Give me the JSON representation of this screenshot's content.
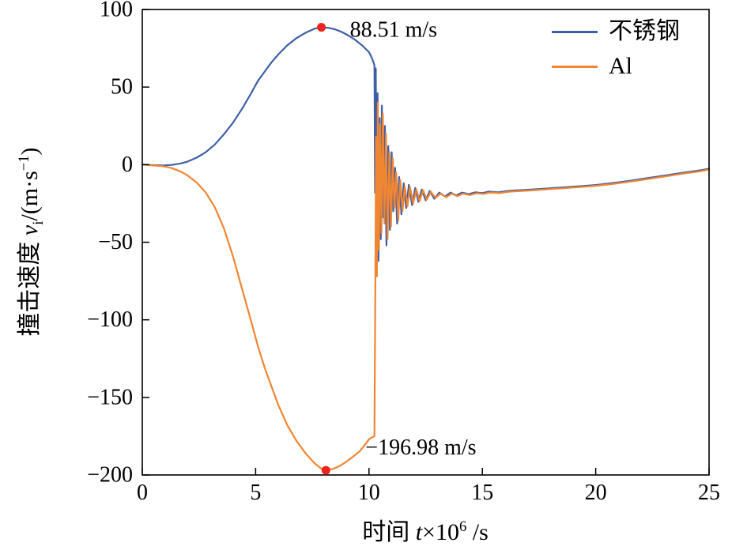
{
  "chart_data": {
    "type": "line",
    "title": "",
    "xlabel": {
      "prefix": "时间 ",
      "var": "t",
      "mult": "×10",
      "sup": "6",
      "suffix": " /s"
    },
    "ylabel": {
      "prefix": "撞击速度 ",
      "var": "v",
      "sub": "i",
      "mid": "/(m·s",
      "sup": "−1",
      "suffix": ")"
    },
    "xlim": [
      0,
      25
    ],
    "ylim": [
      -200,
      100
    ],
    "grid": false,
    "frame": true,
    "xticks": {
      "values": [
        0,
        5,
        10,
        15,
        20,
        25
      ],
      "labels": [
        "0",
        "5",
        "10",
        "15",
        "20",
        "25"
      ]
    },
    "yticks": {
      "values": [
        100,
        50,
        0,
        -50,
        -100,
        -150,
        -200
      ],
      "labels": [
        "100",
        "50",
        "0",
        "−50",
        "−100",
        "−150",
        "−200"
      ]
    },
    "legend": {
      "position": "top-right",
      "entries": [
        {
          "label": "不锈钢",
          "color": "#3e5fa7"
        },
        {
          "label": "Al",
          "color": "#f08532"
        }
      ]
    },
    "annotations": [
      {
        "text": "88.51 m/s",
        "point": [
          7.9,
          88.51
        ],
        "marker_color": "#e8261f",
        "text_dx": 36,
        "text_dy": 12
      },
      {
        "text": "−196.98 m/s",
        "point": [
          8.1,
          -196.98
        ],
        "marker_color": "#e8261f",
        "text_dx": 50,
        "text_dy": -20
      }
    ],
    "series": [
      {
        "name": "不锈钢",
        "color": "#3e5fa7",
        "points": [
          [
            0,
            0
          ],
          [
            0.4,
            -0.3
          ],
          [
            0.9,
            -0.5
          ],
          [
            1.3,
            -0.2
          ],
          [
            1.7,
            0.8
          ],
          [
            2,
            2
          ],
          [
            2.4,
            4.5
          ],
          [
            2.8,
            8
          ],
          [
            3.2,
            13
          ],
          [
            3.6,
            19.5
          ],
          [
            4,
            27
          ],
          [
            4.4,
            36
          ],
          [
            4.8,
            46
          ],
          [
            5.1,
            54
          ],
          [
            5.4,
            60
          ],
          [
            5.7,
            66
          ],
          [
            6,
            71
          ],
          [
            6.4,
            77
          ],
          [
            6.8,
            81.5
          ],
          [
            7.2,
            85
          ],
          [
            7.6,
            87.6
          ],
          [
            7.9,
            88.51
          ],
          [
            8.2,
            88.2
          ],
          [
            8.5,
            87.2
          ],
          [
            8.8,
            85.5
          ],
          [
            9.1,
            83.2
          ],
          [
            9.4,
            80.3
          ],
          [
            9.7,
            76.8
          ],
          [
            10,
            72.5
          ],
          [
            10.12,
            69
          ],
          [
            10.2,
            66
          ],
          [
            10.24,
            64
          ],
          [
            10.27,
            -18
          ],
          [
            10.3,
            62
          ],
          [
            10.34,
            -68
          ],
          [
            10.38,
            46
          ],
          [
            10.42,
            -62
          ],
          [
            10.47,
            30
          ],
          [
            10.52,
            -48
          ],
          [
            10.57,
            38
          ],
          [
            10.63,
            -34
          ],
          [
            10.7,
            25
          ],
          [
            10.77,
            -52
          ],
          [
            10.85,
            12
          ],
          [
            10.92,
            -42
          ],
          [
            11,
            8
          ],
          [
            11.07,
            -30
          ],
          [
            11.15,
            -2
          ],
          [
            11.24,
            -38
          ],
          [
            11.33,
            -8
          ],
          [
            11.43,
            -32
          ],
          [
            11.53,
            -12
          ],
          [
            11.64,
            -28
          ],
          [
            11.76,
            -13
          ],
          [
            11.9,
            -26
          ],
          [
            12.04,
            -15
          ],
          [
            12.18,
            -24
          ],
          [
            12.33,
            -16
          ],
          [
            12.5,
            -23
          ],
          [
            12.68,
            -17
          ],
          [
            12.88,
            -22
          ],
          [
            13.1,
            -18
          ],
          [
            13.35,
            -20.5
          ],
          [
            13.6,
            -18
          ],
          [
            13.85,
            -19.8
          ],
          [
            14.1,
            -18
          ],
          [
            14.4,
            -19
          ],
          [
            14.7,
            -17.8
          ],
          [
            15,
            -18.3
          ],
          [
            15.3,
            -17.3
          ],
          [
            15.7,
            -17.8
          ],
          [
            16.1,
            -17
          ],
          [
            16.5,
            -16.6
          ],
          [
            17,
            -16.2
          ],
          [
            17.5,
            -15.7
          ],
          [
            18,
            -15.2
          ],
          [
            18.5,
            -14.7
          ],
          [
            19,
            -14.2
          ],
          [
            19.5,
            -13.7
          ],
          [
            20,
            -13.1
          ],
          [
            20.5,
            -12.3
          ],
          [
            21,
            -11.4
          ],
          [
            21.5,
            -10.4
          ],
          [
            22,
            -9.3
          ],
          [
            22.5,
            -8.2
          ],
          [
            23,
            -7.1
          ],
          [
            23.5,
            -6
          ],
          [
            24,
            -4.9
          ],
          [
            24.5,
            -3.9
          ],
          [
            24.8,
            -3.2
          ],
          [
            25,
            -2.6
          ]
        ]
      },
      {
        "name": "Al",
        "color": "#f08532",
        "points": [
          [
            0,
            0
          ],
          [
            0.4,
            -0.4
          ],
          [
            0.9,
            -1
          ],
          [
            1.3,
            -2.2
          ],
          [
            1.7,
            -4.5
          ],
          [
            2,
            -7
          ],
          [
            2.4,
            -11.5
          ],
          [
            2.8,
            -18
          ],
          [
            3.2,
            -27.5
          ],
          [
            3.6,
            -41
          ],
          [
            4,
            -59
          ],
          [
            4.4,
            -80
          ],
          [
            4.8,
            -101
          ],
          [
            5.1,
            -117
          ],
          [
            5.4,
            -131
          ],
          [
            5.7,
            -143
          ],
          [
            6,
            -155
          ],
          [
            6.4,
            -168
          ],
          [
            6.8,
            -178
          ],
          [
            7.2,
            -186
          ],
          [
            7.6,
            -192.5
          ],
          [
            7.9,
            -196
          ],
          [
            8.1,
            -196.98
          ],
          [
            8.4,
            -196.2
          ],
          [
            8.7,
            -194.3
          ],
          [
            9,
            -191.5
          ],
          [
            9.3,
            -188.2
          ],
          [
            9.6,
            -184.6
          ],
          [
            9.85,
            -180
          ],
          [
            10,
            -177
          ],
          [
            10.1,
            -176
          ],
          [
            10.24,
            -175
          ],
          [
            10.28,
            -80
          ],
          [
            10.31,
            18
          ],
          [
            10.35,
            -72
          ],
          [
            10.39,
            40
          ],
          [
            10.44,
            -55
          ],
          [
            10.49,
            26
          ],
          [
            10.55,
            -44
          ],
          [
            10.61,
            33
          ],
          [
            10.68,
            -38
          ],
          [
            10.75,
            20
          ],
          [
            10.82,
            -48
          ],
          [
            10.9,
            8
          ],
          [
            10.97,
            -40
          ],
          [
            11.05,
            4
          ],
          [
            11.12,
            -28
          ],
          [
            11.2,
            -5
          ],
          [
            11.29,
            -36
          ],
          [
            11.38,
            -10
          ],
          [
            11.48,
            -30
          ],
          [
            11.58,
            -14
          ],
          [
            11.69,
            -27
          ],
          [
            11.81,
            -14.5
          ],
          [
            11.95,
            -25
          ],
          [
            12.09,
            -16
          ],
          [
            12.23,
            -23.5
          ],
          [
            12.38,
            -16.5
          ],
          [
            12.55,
            -22.5
          ],
          [
            12.73,
            -17.5
          ],
          [
            12.93,
            -21.5
          ],
          [
            13.15,
            -18.7
          ],
          [
            13.4,
            -21
          ],
          [
            13.65,
            -18.7
          ],
          [
            13.9,
            -20.3
          ],
          [
            14.15,
            -18.7
          ],
          [
            14.45,
            -19.6
          ],
          [
            14.75,
            -18.4
          ],
          [
            15.05,
            -18.9
          ],
          [
            15.35,
            -17.9
          ],
          [
            15.75,
            -18.3
          ],
          [
            16.15,
            -17.5
          ],
          [
            16.55,
            -17.1
          ],
          [
            17.05,
            -16.7
          ],
          [
            17.55,
            -16.2
          ],
          [
            18.05,
            -15.7
          ],
          [
            18.55,
            -15.2
          ],
          [
            19.05,
            -14.7
          ],
          [
            19.55,
            -14.2
          ],
          [
            20.05,
            -13.6
          ],
          [
            20.55,
            -12.8
          ],
          [
            21.05,
            -11.9
          ],
          [
            21.55,
            -10.9
          ],
          [
            22.05,
            -9.8
          ],
          [
            22.55,
            -8.7
          ],
          [
            23.05,
            -7.6
          ],
          [
            23.55,
            -6.5
          ],
          [
            24.05,
            -5.4
          ],
          [
            24.55,
            -4.4
          ],
          [
            24.85,
            -3.6
          ],
          [
            25,
            -3.1
          ]
        ]
      }
    ]
  }
}
